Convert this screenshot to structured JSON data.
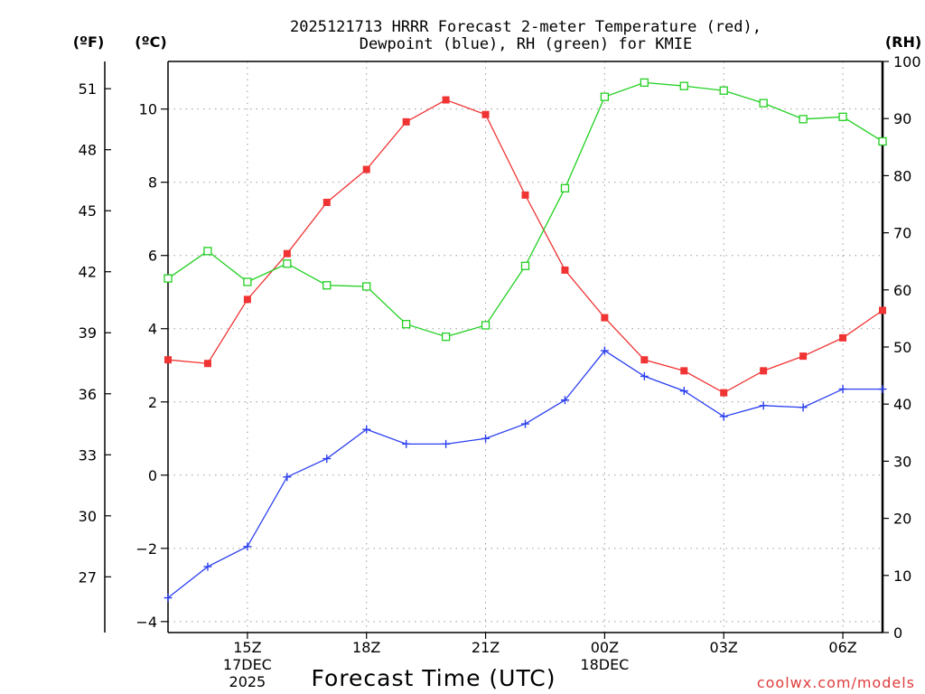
{
  "chart_data": {
    "type": "line",
    "title_lines": [
      "2025121713 HRRR Forecast 2-meter Temperature (red),",
      "Dewpoint (blue), RH (green) for KMIE"
    ],
    "xlabel": "Forecast Time (UTC)",
    "credit": "coolwx.com/models",
    "units": {
      "fahrenheit": "(ºF)",
      "celsius": "(ºC)",
      "rh": "(RH)"
    },
    "x": [
      13,
      14,
      15,
      16,
      17,
      18,
      19,
      20,
      21,
      22,
      23,
      24,
      25,
      26,
      27,
      28,
      29,
      30,
      31
    ],
    "xlim": [
      13,
      31
    ],
    "x_ticks": [
      {
        "x": 15,
        "lines": [
          "15Z",
          "17DEC",
          "2025"
        ]
      },
      {
        "x": 18,
        "lines": [
          "18Z"
        ]
      },
      {
        "x": 21,
        "lines": [
          "21Z"
        ]
      },
      {
        "x": 24,
        "lines": [
          "00Z",
          "18DEC"
        ]
      },
      {
        "x": 27,
        "lines": [
          "03Z"
        ]
      },
      {
        "x": 30,
        "lines": [
          "06Z"
        ]
      }
    ],
    "y_left_celsius": {
      "ylim": [
        -4.3,
        11.3
      ],
      "ticks": [
        -4,
        -2,
        0,
        2,
        4,
        6,
        8,
        10
      ],
      "tick_labels": [
        "−4",
        "−2",
        "0",
        "2",
        "4",
        "6",
        "8",
        "10"
      ]
    },
    "y_left_fahrenheit": {
      "ticks": [
        27,
        30,
        33,
        36,
        39,
        42,
        45,
        48,
        51
      ],
      "tick_labels": [
        "27",
        "30",
        "33",
        "36",
        "39",
        "42",
        "45",
        "48",
        "51"
      ]
    },
    "y_right_rh": {
      "ylim": [
        0,
        100
      ],
      "ticks": [
        0,
        10,
        20,
        30,
        40,
        50,
        60,
        70,
        80,
        90,
        100
      ],
      "tick_labels": [
        "0",
        "10",
        "20",
        "30",
        "40",
        "50",
        "60",
        "70",
        "80",
        "90",
        "100"
      ]
    },
    "series": [
      {
        "name": "2-meter Temperature",
        "axis": "celsius",
        "color": "#f03333",
        "marker": "filled-square",
        "values": [
          3.15,
          3.05,
          4.8,
          6.05,
          7.45,
          8.35,
          9.65,
          10.25,
          9.85,
          7.65,
          5.6,
          4.3,
          3.15,
          2.85,
          2.25,
          2.85,
          3.25,
          3.75,
          4.5
        ]
      },
      {
        "name": "Dewpoint",
        "axis": "celsius",
        "color": "#2b3ff0",
        "marker": "plus",
        "values": [
          -3.35,
          -2.5,
          -1.95,
          -0.05,
          0.45,
          1.25,
          0.85,
          0.85,
          1.0,
          1.4,
          2.05,
          3.4,
          2.7,
          2.3,
          1.6,
          1.9,
          1.85,
          2.35,
          2.35
        ]
      },
      {
        "name": "RH",
        "axis": "rh",
        "color": "#22d022",
        "marker": "open-square",
        "values": [
          62,
          66.8,
          61.4,
          64.6,
          60.8,
          60.6,
          54,
          51.8,
          53.8,
          64.2,
          77.8,
          93.8,
          96.3,
          95.7,
          94.9,
          92.7,
          89.9,
          90.3,
          86
        ]
      }
    ]
  }
}
